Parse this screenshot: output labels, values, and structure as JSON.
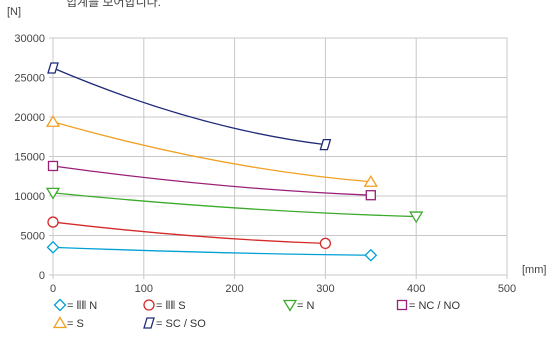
{
  "header_text": "힙계를 보어합니다.",
  "chart_data": {
    "type": "line",
    "title": "",
    "xlabel": "[mm]",
    "ylabel": "[N]",
    "xlim": [
      0,
      500
    ],
    "ylim": [
      0,
      30000
    ],
    "xticks": [
      "0",
      "100",
      "200",
      "300",
      "400",
      "500"
    ],
    "yticks": [
      "0",
      "5000",
      "10000",
      "15000",
      "20000",
      "25000",
      "30000"
    ],
    "grid": true,
    "legend_position": "bottom",
    "series": [
      {
        "name": "= ⦀⦀ N",
        "color": "#00a0d6",
        "marker": "diamond",
        "x": [
          0,
          350
        ],
        "y": [
          3500,
          2500
        ]
      },
      {
        "name": "= ⦀⦀ S",
        "color": "#d42a2a",
        "marker": "circle",
        "x": [
          0,
          300
        ],
        "y": [
          6700,
          4000
        ]
      },
      {
        "name": "= N",
        "color": "#3caa2c",
        "marker": "triangle-down",
        "x": [
          0,
          400
        ],
        "y": [
          10400,
          7400
        ]
      },
      {
        "name": "= NC / NO",
        "color": "#9a1f78",
        "marker": "square",
        "x": [
          0,
          350
        ],
        "y": [
          13800,
          10100
        ]
      },
      {
        "name": "= S",
        "color": "#f0a020",
        "marker": "triangle-up",
        "x": [
          0,
          350
        ],
        "y": [
          19400,
          11800
        ]
      },
      {
        "name": "= SC / SO",
        "color": "#1e2a78",
        "marker": "parallelogram",
        "x": [
          0,
          300
        ],
        "y": [
          26200,
          16500
        ]
      }
    ]
  }
}
